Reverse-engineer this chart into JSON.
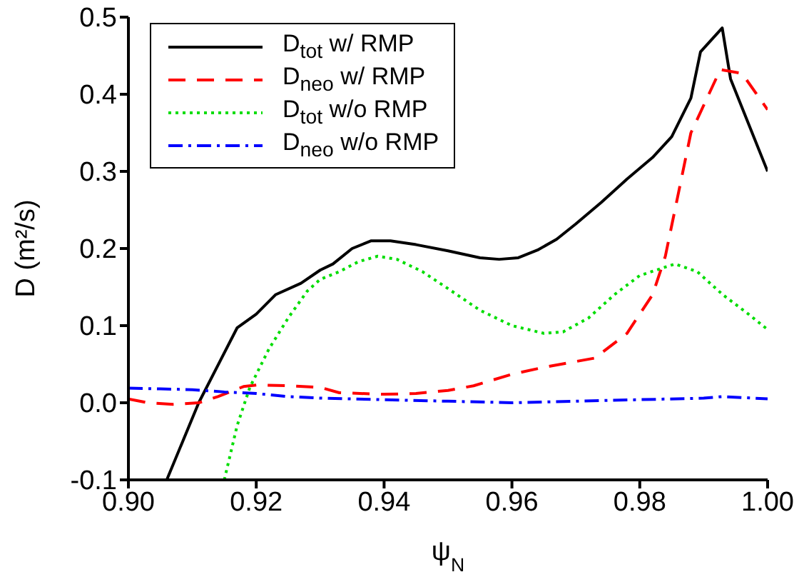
{
  "chart_data": {
    "type": "line",
    "xlabel": "ψ$_{N}$",
    "ylabel": "D (m²/s)",
    "xlim": [
      0.9,
      1.0
    ],
    "xticks": [
      {
        "value": 0.9,
        "label": "0.90"
      },
      {
        "value": 0.92,
        "label": "0.92"
      },
      {
        "value": 0.94,
        "label": "0.94"
      },
      {
        "value": 0.96,
        "label": "0.96"
      },
      {
        "value": 0.98,
        "label": "0.98"
      },
      {
        "value": 1.0,
        "label": "1.00"
      }
    ],
    "ylim": [
      -0.1,
      0.5
    ],
    "yticks": [
      {
        "value": -0.1,
        "label": "-0.1"
      },
      {
        "value": 0,
        "label": "0.0"
      },
      {
        "value": 0.1,
        "label": "0.1"
      },
      {
        "value": 0.2,
        "label": "0.2"
      },
      {
        "value": 0.3,
        "label": "0.3"
      },
      {
        "value": 0.4,
        "label": "0.4"
      },
      {
        "value": 0.5,
        "label": "0.5"
      }
    ],
    "legend": "top left",
    "marker": "none",
    "series": [
      {
        "name": "D$_{tot}$ w/ RMP",
        "color": "#000000",
        "line_style": "solid",
        "x": [
          0.906,
          0.911,
          0.917,
          0.92,
          0.923,
          0.927,
          0.93,
          0.932,
          0.935,
          0.938,
          0.941,
          0.945,
          0.95,
          0.955,
          0.958,
          0.961,
          0.964,
          0.967,
          0.97,
          0.974,
          0.978,
          0.982,
          0.985,
          0.988,
          0.9895,
          0.9929,
          0.9942,
          1.0
        ],
        "values": [
          -0.1,
          0.0,
          0.097,
          0.115,
          0.14,
          0.155,
          0.172,
          0.18,
          0.2,
          0.21,
          0.21,
          0.205,
          0.197,
          0.188,
          0.186,
          0.188,
          0.198,
          0.212,
          0.232,
          0.26,
          0.29,
          0.318,
          0.345,
          0.395,
          0.455,
          0.486,
          0.42,
          0.3
        ]
      },
      {
        "name": "D$_{neo}$ w/ RMP",
        "color": "#ff0000",
        "line_style": "dashed",
        "x": [
          0.9,
          0.903,
          0.907,
          0.911,
          0.914,
          0.918,
          0.92,
          0.925,
          0.93,
          0.933,
          0.94,
          0.945,
          0.95,
          0.954,
          0.96,
          0.965,
          0.973,
          0.978,
          0.982,
          0.984,
          0.988,
          0.9926,
          0.996,
          1.0
        ],
        "values": [
          0.005,
          0.0,
          -0.002,
          0.0,
          0.008,
          0.021,
          0.023,
          0.022,
          0.02,
          0.013,
          0.011,
          0.012,
          0.016,
          0.022,
          0.037,
          0.046,
          0.058,
          0.09,
          0.14,
          0.19,
          0.35,
          0.432,
          0.427,
          0.38
        ]
      },
      {
        "name": "D$_{tot}$ w/o RMP",
        "color": "#00dd00",
        "line_style": "dotted",
        "x": [
          0.915,
          0.917,
          0.919,
          0.922,
          0.925,
          0.928,
          0.93,
          0.933,
          0.936,
          0.939,
          0.942,
          0.946,
          0.95,
          0.955,
          0.96,
          0.965,
          0.968,
          0.972,
          0.976,
          0.98,
          0.9855,
          0.989,
          0.993,
          0.997,
          1.0
        ],
        "values": [
          -0.1,
          -0.03,
          0.02,
          0.07,
          0.11,
          0.145,
          0.16,
          0.17,
          0.183,
          0.19,
          0.186,
          0.17,
          0.148,
          0.12,
          0.1,
          0.09,
          0.092,
          0.11,
          0.14,
          0.165,
          0.18,
          0.17,
          0.14,
          0.115,
          0.095
        ]
      },
      {
        "name": "D$_{neo}$ w/o RMP",
        "color": "#0000ff",
        "line_style": "dashdot",
        "x": [
          0.9,
          0.905,
          0.91,
          0.915,
          0.92,
          0.925,
          0.93,
          0.94,
          0.95,
          0.96,
          0.97,
          0.98,
          0.99,
          0.993,
          1.0
        ],
        "values": [
          0.019,
          0.018,
          0.017,
          0.014,
          0.012,
          0.008,
          0.006,
          0.004,
          0.002,
          0.0,
          0.002,
          0.004,
          0.006,
          0.008,
          0.005
        ]
      }
    ]
  }
}
